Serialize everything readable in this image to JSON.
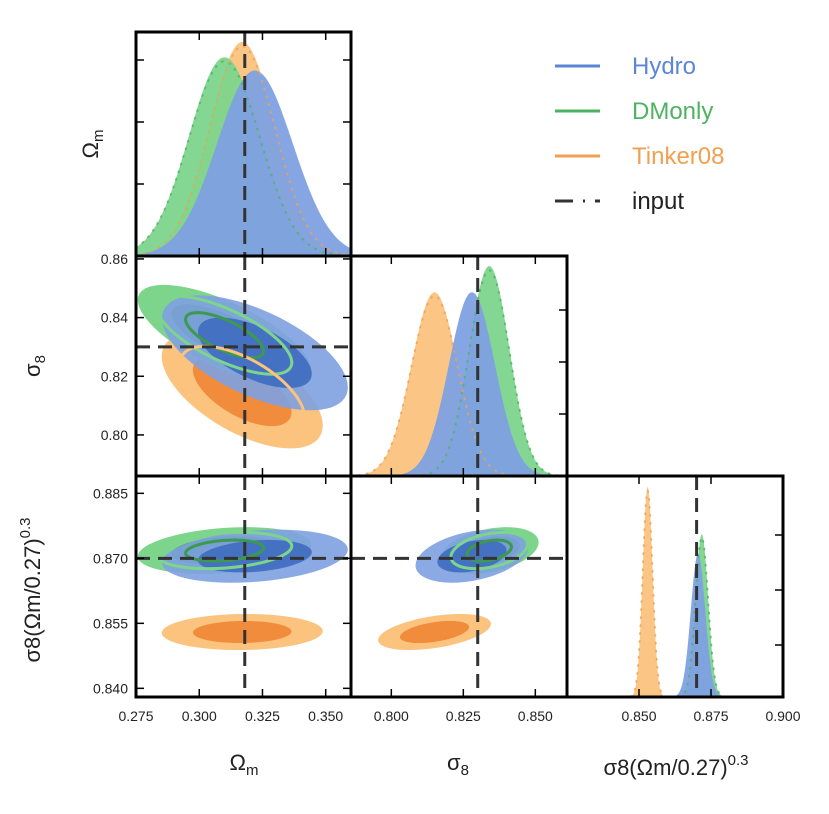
{
  "chart_data": {
    "type": "corner",
    "params": [
      {
        "key": "omega_m",
        "label_main": "Ω",
        "label_sub": "m",
        "range": [
          0.275,
          0.36
        ],
        "ticks": [
          "0.275",
          "0.300",
          "0.325",
          "0.350"
        ],
        "tick_values": [
          0.275,
          0.3,
          0.325,
          0.35
        ],
        "input": 0.318
      },
      {
        "key": "sigma8",
        "label_main": "σ",
        "label_sub": "8",
        "range": [
          0.786,
          0.861
        ],
        "ticks": [
          "0.800",
          "0.825",
          "0.850"
        ],
        "tick_values": [
          0.8,
          0.825,
          0.85
        ],
        "y_ticks": [
          "0.80",
          "0.82",
          "0.84",
          "0.86"
        ],
        "y_tick_values": [
          0.8,
          0.82,
          0.84,
          0.86
        ],
        "input": 0.83
      },
      {
        "key": "S8",
        "label_text": "σ8(Ωm/0.27)",
        "label_sup": "0.3",
        "range": [
          0.838,
          0.889
        ],
        "ticks": [
          "0.850",
          "0.875",
          "0.900"
        ],
        "tick_values": [
          0.85,
          0.875,
          0.9
        ],
        "x_range": [
          0.825,
          0.9
        ],
        "y_ticks": [
          "0.840",
          "0.855",
          "0.870",
          "0.885"
        ],
        "y_tick_values": [
          0.84,
          0.855,
          0.87,
          0.885
        ],
        "input": 0.87
      }
    ],
    "series": [
      {
        "name": "Hydro",
        "color": "#5b86d6",
        "light": "#7ea1e1",
        "dark": "#3f6bc0",
        "omega_m": {
          "mean": 0.322,
          "sd": 0.015
        },
        "sigma8": {
          "mean": 0.828,
          "sd": 0.008
        },
        "S8": {
          "mean": 0.8705,
          "sd": 0.0025
        }
      },
      {
        "name": "DMonly",
        "color": "#4db361",
        "light": "#7dd58c",
        "dark": "#3c9a4e",
        "omega_m": {
          "mean": 0.31,
          "sd": 0.014
        },
        "sigma8": {
          "mean": 0.834,
          "sd": 0.007
        },
        "S8": {
          "mean": 0.8718,
          "sd": 0.0022
        }
      },
      {
        "name": "Tinker08",
        "color": "#f0a050",
        "light": "#fbc37e",
        "dark": "#f08c3c",
        "omega_m": {
          "mean": 0.317,
          "sd": 0.013
        },
        "sigma8": {
          "mean": 0.815,
          "sd": 0.008
        },
        "S8": {
          "mean": 0.853,
          "sd": 0.0017
        }
      },
      {
        "name": "input",
        "color": "#333333",
        "style": "dashed"
      }
    ],
    "panels": [
      {
        "row": 0,
        "col": 0,
        "kind": "marginal",
        "param": "omega_m"
      },
      {
        "row": 1,
        "col": 0,
        "kind": "joint",
        "x": "omega_m",
        "y": "sigma8"
      },
      {
        "row": 1,
        "col": 1,
        "kind": "marginal",
        "param": "sigma8"
      },
      {
        "row": 2,
        "col": 0,
        "kind": "joint",
        "x": "omega_m",
        "y": "S8"
      },
      {
        "row": 2,
        "col": 1,
        "kind": "joint",
        "x": "sigma8",
        "y": "S8"
      },
      {
        "row": 2,
        "col": 2,
        "kind": "marginal",
        "param": "S8"
      }
    ],
    "legend_position": "top-right"
  }
}
